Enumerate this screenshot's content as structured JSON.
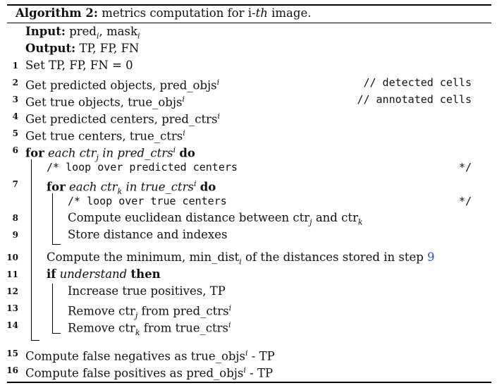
{
  "caption": {
    "label": "Algorithm 2:",
    "text": "metrics computation for i-",
    "th": "th",
    "tail": " image."
  },
  "input": {
    "label": "Input:",
    "pred": "pred",
    "pred_sub": "i",
    "mask": "mask",
    "mask_sub": "i"
  },
  "output": {
    "label": "Output:",
    "text": "TP, FP, FN"
  },
  "lines": {
    "l1": {
      "num": "1",
      "text": "Set TP, FP, FN = 0"
    },
    "l2": {
      "num": "2",
      "text": "Get predicted objects, pred_objs",
      "sup": "i",
      "comment": "// detected cells"
    },
    "l3": {
      "num": "3",
      "text": "Get true objects, true_objs",
      "sup": "i",
      "comment": "// annotated cells"
    },
    "l4": {
      "num": "4",
      "text": "Get predicted centers, pred_ctrs",
      "sup": "i"
    },
    "l5": {
      "num": "5",
      "text": "Get true centers, true_ctrs",
      "sup": "i"
    },
    "l6": {
      "num": "6",
      "kw_for": "for",
      "each": "each ctr",
      "sub": "j",
      "in": " in pred_ctrs",
      "sup": "i",
      "kw_do": "do"
    },
    "c1": {
      "text": "/* loop over predicted centers",
      "end": "*/"
    },
    "l7": {
      "num": "7",
      "kw_for": "for",
      "each": "each ctr",
      "sub": "k",
      "in": " in true_ctrs",
      "sup": "i",
      "kw_do": "do"
    },
    "c2": {
      "text": "/* loop over true centers",
      "end": "*/"
    },
    "l8": {
      "num": "8",
      "text": "Compute euclidean distance between ctr",
      "sub1": "j",
      "and": " and ctr",
      "sub2": "k"
    },
    "l9": {
      "num": "9",
      "text": "Store distance and indexes"
    },
    "l10": {
      "num": "10",
      "text": "Compute the minimum, min_dist",
      "sub": "i",
      "rest": " of the distances stored in step ",
      "ref": "9"
    },
    "l11": {
      "num": "11",
      "kw_if": "if",
      "cond": "understand",
      "kw_then": "then"
    },
    "l12": {
      "num": "12",
      "text": "Increase true positives, TP"
    },
    "l13": {
      "num": "13",
      "pre": "Remove ctr",
      "sub": "j",
      "post": " from pred_ctrs",
      "sup": "i"
    },
    "l14": {
      "num": "14",
      "pre": "Remove ctr",
      "sub": "k",
      "post": " from true_ctrs",
      "sup": "i"
    },
    "l15": {
      "num": "15",
      "pre": "Compute false negatives as true_objs",
      "sup": "i",
      "post": " - TP"
    },
    "l16": {
      "num": "16",
      "pre": "Compute false positives as pred_objs",
      "sup": "i",
      "post": " - TP"
    }
  }
}
